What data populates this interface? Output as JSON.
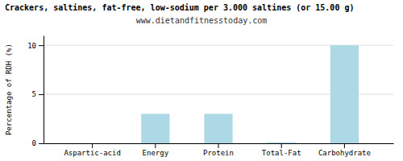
{
  "chart_data": {
    "type": "bar",
    "title": "Crackers, saltines, fat-free, low-sodium per 3.000 saltines (or 15.00 g)",
    "subtitle": "www.dietandfitnesstoday.com",
    "categories": [
      "Aspartic-acid",
      "Energy",
      "Protein",
      "Total-Fat",
      "Carbohydrate"
    ],
    "values": [
      0,
      3.0,
      3.0,
      0.1,
      10.0
    ],
    "color": "#add8e6",
    "ylabel": "Percentage of RDH (%)",
    "ylim": [
      0,
      11
    ],
    "yticks": [
      0,
      5,
      10
    ],
    "grid": true
  }
}
